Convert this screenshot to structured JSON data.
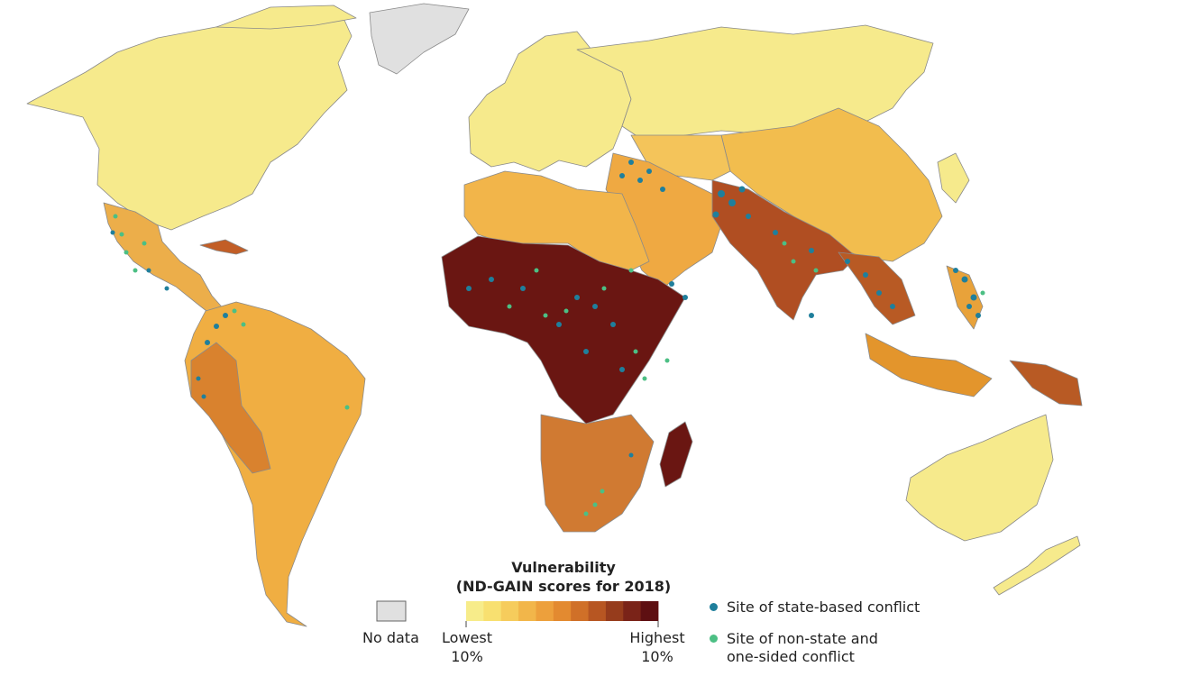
{
  "legend": {
    "title_line1": "Vulnerability",
    "title_line2": "(ND-GAIN scores for 2018)",
    "no_data_label": "No data",
    "low_label": "Lowest",
    "low_pct": "10%",
    "high_label": "Highest",
    "high_pct": "10%",
    "scale_colors": [
      "#f7ec8a",
      "#f8e070",
      "#f6cc5c",
      "#f2b64a",
      "#eda03c",
      "#e38a30",
      "#d07028",
      "#b75622",
      "#963c1c",
      "#7a2318",
      "#5e0f12"
    ],
    "no_data_color": "#e0e0e0",
    "state_based_label": "Site of state-based conflict",
    "state_based_color": "#1f7f9c",
    "non_state_label_line1": "Site of non-state and",
    "non_state_label_line2": "one-sided conflict",
    "non_state_color": "#4cbf84"
  }
}
